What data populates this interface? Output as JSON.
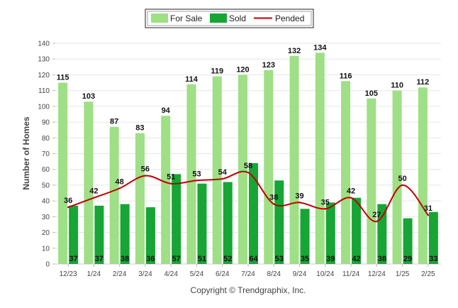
{
  "chart_data": {
    "type": "bar",
    "title": "",
    "xlabel": "",
    "ylabel": "Number of Homes",
    "ylim": [
      0,
      140
    ],
    "yticks": [
      0,
      10,
      20,
      30,
      40,
      50,
      60,
      70,
      80,
      90,
      100,
      110,
      120,
      130,
      140
    ],
    "grid": true,
    "legend_position": "top-center",
    "categories": [
      "12/23",
      "1/24",
      "2/24",
      "3/24",
      "4/24",
      "5/24",
      "6/24",
      "7/24",
      "8/24",
      "9/24",
      "10/24",
      "11/24",
      "12/24",
      "1/25",
      "2/25"
    ],
    "series": [
      {
        "name": "For Sale",
        "type": "bar",
        "color": "#9fdf85",
        "values": [
          115,
          103,
          87,
          83,
          94,
          114,
          119,
          120,
          123,
          132,
          134,
          116,
          105,
          110,
          112
        ]
      },
      {
        "name": "Sold",
        "type": "bar",
        "color": "#17a535",
        "values": [
          37,
          37,
          38,
          36,
          57,
          51,
          52,
          64,
          53,
          35,
          39,
          42,
          38,
          29,
          33
        ]
      },
      {
        "name": "Pended",
        "type": "line",
        "color": "#c00000",
        "values": [
          36,
          42,
          48,
          56,
          51,
          53,
          54,
          58,
          38,
          39,
          35,
          42,
          27,
          50,
          31
        ]
      }
    ]
  },
  "footer": {
    "copyright": "Copyright © Trendgraphix, Inc."
  }
}
